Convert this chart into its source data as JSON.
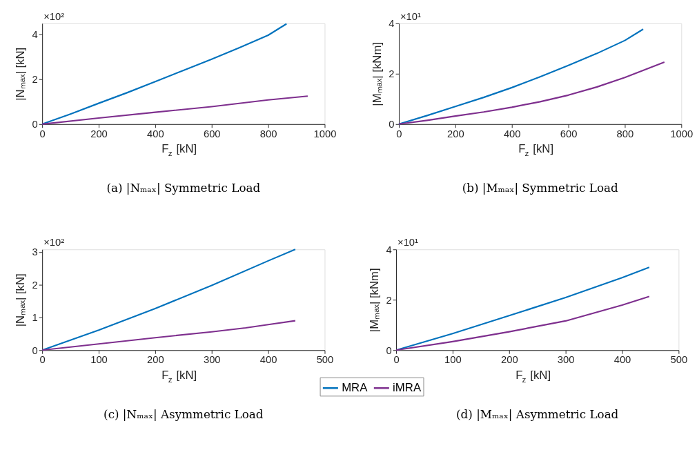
{
  "chart_data": [
    {
      "type": "line",
      "title": "(a) |Nₘₐₓ| Symmetric Load",
      "xlabel": "F$_{z}$ [kN]",
      "ylabel": "|Nₘₐₓ| [kN]",
      "annotations": [
        "×10²"
      ],
      "xlim": [
        0,
        1000
      ],
      "xticks": [
        0,
        200,
        400,
        600,
        800,
        1000
      ],
      "ylim": [
        0,
        4.5
      ],
      "yticks": [
        0,
        2,
        4
      ],
      "grid": false,
      "line_style": "solid",
      "legend": "bottom",
      "series": [
        {
          "name": "MRA",
          "color": "#0072bd",
          "x": [
            0,
            100,
            200,
            300,
            400,
            500,
            600,
            700,
            800,
            865
          ],
          "values": [
            0,
            0.45,
            0.93,
            1.4,
            1.9,
            2.4,
            2.9,
            3.42,
            3.97,
            4.48
          ]
        },
        {
          "name": "iMRA",
          "color": "#7e2f8e",
          "x": [
            0,
            200,
            400,
            600,
            800,
            940
          ],
          "values": [
            0,
            0.27,
            0.53,
            0.78,
            1.08,
            1.25
          ]
        }
      ]
    },
    {
      "type": "line",
      "title": "(b) |Mₘₐₓ| Symmetric Load",
      "xlabel": "F$_{z}$ [kN]",
      "ylabel": "|Mₘₐₓ| [kNm]",
      "annotations": [
        "×10¹"
      ],
      "xlim": [
        0,
        1000
      ],
      "xticks": [
        0,
        200,
        400,
        600,
        800,
        1000
      ],
      "ylim": [
        0,
        4
      ],
      "yticks": [
        0,
        2,
        4
      ],
      "grid": false,
      "line_style": "solid",
      "series": [
        {
          "name": "MRA",
          "color": "#0072bd",
          "x": [
            0,
            100,
            200,
            300,
            400,
            500,
            600,
            700,
            800,
            865
          ],
          "values": [
            0,
            0.34,
            0.7,
            1.06,
            1.45,
            1.88,
            2.33,
            2.8,
            3.32,
            3.77
          ]
        },
        {
          "name": "iMRA",
          "color": "#7e2f8e",
          "x": [
            0,
            100,
            200,
            300,
            400,
            500,
            600,
            700,
            800,
            940
          ],
          "values": [
            0,
            0.15,
            0.32,
            0.48,
            0.67,
            0.89,
            1.15,
            1.47,
            1.85,
            2.46
          ]
        }
      ]
    },
    {
      "type": "line",
      "title": "(c) |Nₘₐₓ| Asymmetric Load",
      "xlabel": "F$_{z}$ [kN]",
      "ylabel": "|Nₘₐₓ| [kN]",
      "annotations": [
        "×10²"
      ],
      "xlim": [
        0,
        500
      ],
      "xticks": [
        0,
        100,
        200,
        300,
        400,
        500
      ],
      "ylim": [
        0,
        3.08
      ],
      "yticks": [
        0,
        1,
        2,
        3
      ],
      "grid": false,
      "line_style": "solid",
      "series": [
        {
          "name": "MRA",
          "color": "#0072bd",
          "x": [
            0,
            100,
            200,
            300,
            400,
            448
          ],
          "values": [
            0,
            0.61,
            1.27,
            1.98,
            2.73,
            3.08
          ]
        },
        {
          "name": "iMRA",
          "color": "#7e2f8e",
          "x": [
            0,
            100,
            200,
            300,
            360,
            400,
            448
          ],
          "values": [
            0,
            0.19,
            0.38,
            0.56,
            0.68,
            0.78,
            0.9
          ]
        }
      ]
    },
    {
      "type": "line",
      "title": "(d) |Mₘₐₓ| Asymmetric Load",
      "xlabel": "F$_{z}$ [kN]",
      "ylabel": "|Mₘₐₓ| [kNm]",
      "annotations": [
        "×10¹"
      ],
      "xlim": [
        0,
        500
      ],
      "xticks": [
        0,
        100,
        200,
        300,
        400,
        500
      ],
      "ylim": [
        0,
        4
      ],
      "yticks": [
        0,
        2,
        4
      ],
      "grid": false,
      "line_style": "solid",
      "series": [
        {
          "name": "MRA",
          "color": "#0072bd",
          "x": [
            0,
            100,
            200,
            300,
            400,
            448
          ],
          "values": [
            0,
            0.66,
            1.37,
            2.09,
            2.88,
            3.29
          ]
        },
        {
          "name": "iMRA",
          "color": "#7e2f8e",
          "x": [
            0,
            100,
            200,
            300,
            400,
            448
          ],
          "values": [
            0,
            0.34,
            0.73,
            1.16,
            1.79,
            2.13
          ]
        }
      ]
    }
  ]
}
